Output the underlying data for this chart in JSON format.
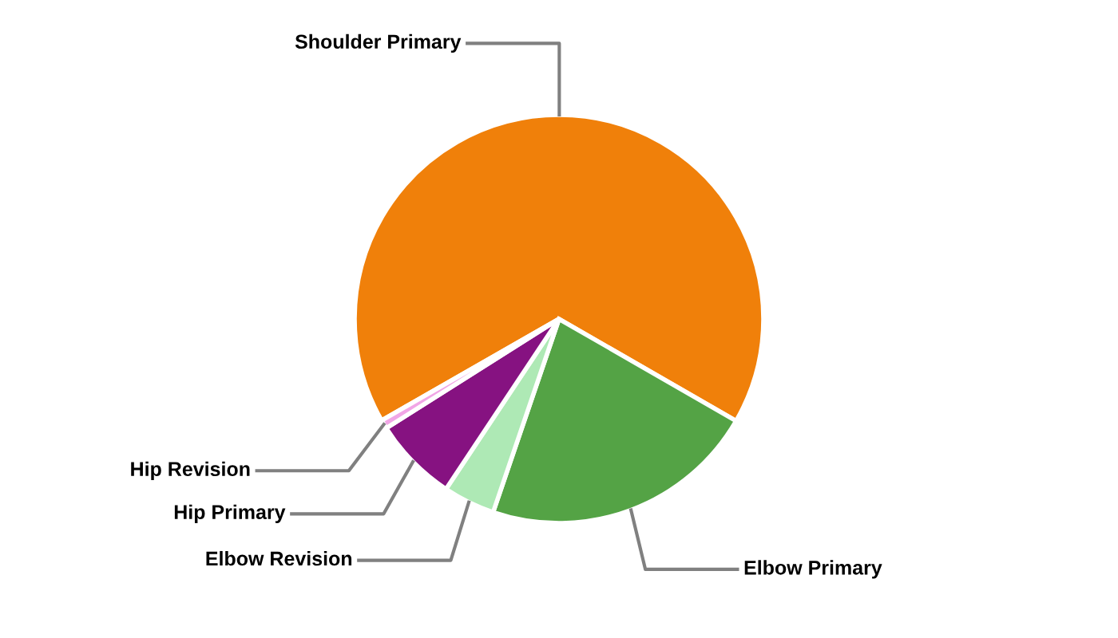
{
  "chart_data": {
    "type": "pie",
    "categories": [
      "Shoulder Primary",
      "Elbow Primary",
      "Elbow Revision",
      "Hip Primary",
      "Hip Revision"
    ],
    "values": [
      66.6,
      21.9,
      4.1,
      6.7,
      0.7
    ],
    "colors": [
      "#f0800a",
      "#54a345",
      "#aee9b5",
      "#861281",
      "#f1a6e6"
    ],
    "legend": false
  }
}
